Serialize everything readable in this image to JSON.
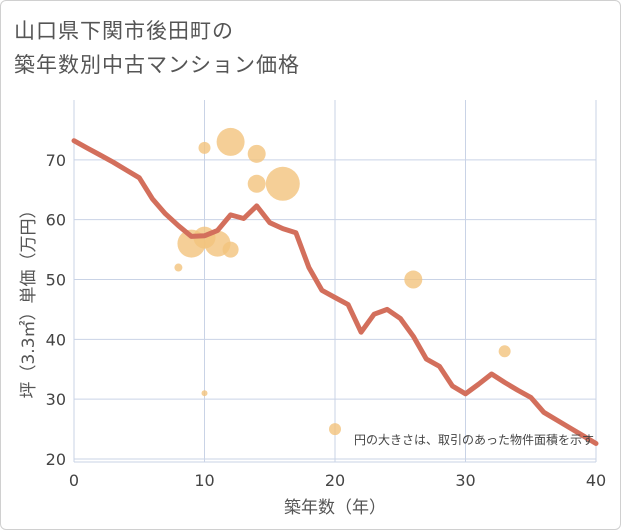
{
  "title_line1": "山口県下関市後田町の",
  "title_line2": "築年数別中古マンション価格",
  "chart_data": {
    "type": "line+scatter",
    "title": "山口県下関市後田町の築年数別中古マンション価格",
    "xlabel": "築年数（年）",
    "ylabel": "坪（3.3㎡）単価（万円）",
    "xlim": [
      0,
      40
    ],
    "ylim": [
      19.5,
      80
    ],
    "xticks": [
      0,
      10,
      20,
      30,
      40
    ],
    "yticks": [
      20,
      30,
      40,
      50,
      60,
      70
    ],
    "xtick_labels": [
      "0",
      "10",
      "20",
      "30",
      "40"
    ],
    "ytick_labels": [
      "20",
      "30",
      "40",
      "50",
      "60",
      "70"
    ],
    "annotation": "円の大きさは、取引のあった物件面積を示す",
    "line_color": "#d36f5c",
    "bubble_color": "#f2c37d",
    "line": {
      "x": [
        0,
        1,
        2,
        3,
        4,
        5,
        6,
        7,
        8,
        9,
        10,
        11,
        12,
        13,
        14,
        15,
        16,
        17,
        18,
        19,
        20,
        21,
        22,
        23,
        24,
        25,
        26,
        27,
        28,
        29,
        30,
        31,
        32,
        33,
        34,
        35,
        36,
        37,
        38,
        39,
        40
      ],
      "y": [
        73.2,
        72.0,
        70.8,
        69.6,
        68.3,
        67.0,
        63.5,
        61.0,
        59.0,
        57.2,
        57.3,
        58.2,
        60.8,
        60.2,
        62.3,
        59.5,
        58.5,
        57.8,
        52.0,
        48.2,
        47.0,
        45.8,
        41.2,
        44.2,
        45.0,
        43.5,
        40.5,
        36.7,
        35.5,
        32.2,
        30.9,
        32.5,
        34.2,
        32.8,
        31.5,
        30.3,
        27.8,
        26.5,
        25.2,
        23.9,
        22.6
      ]
    },
    "bubbles": [
      {
        "x": 8,
        "y": 52,
        "size": 4
      },
      {
        "x": 9,
        "y": 56,
        "size": 14
      },
      {
        "x": 10,
        "y": 57,
        "size": 11
      },
      {
        "x": 10,
        "y": 72,
        "size": 6
      },
      {
        "x": 10,
        "y": 31,
        "size": 3
      },
      {
        "x": 11,
        "y": 56,
        "size": 13
      },
      {
        "x": 12,
        "y": 73,
        "size": 14
      },
      {
        "x": 12,
        "y": 55,
        "size": 8
      },
      {
        "x": 14,
        "y": 71,
        "size": 9
      },
      {
        "x": 14,
        "y": 66,
        "size": 9
      },
      {
        "x": 16,
        "y": 66,
        "size": 17
      },
      {
        "x": 20,
        "y": 25,
        "size": 6
      },
      {
        "x": 26,
        "y": 50,
        "size": 9
      },
      {
        "x": 33,
        "y": 38,
        "size": 6
      }
    ]
  }
}
